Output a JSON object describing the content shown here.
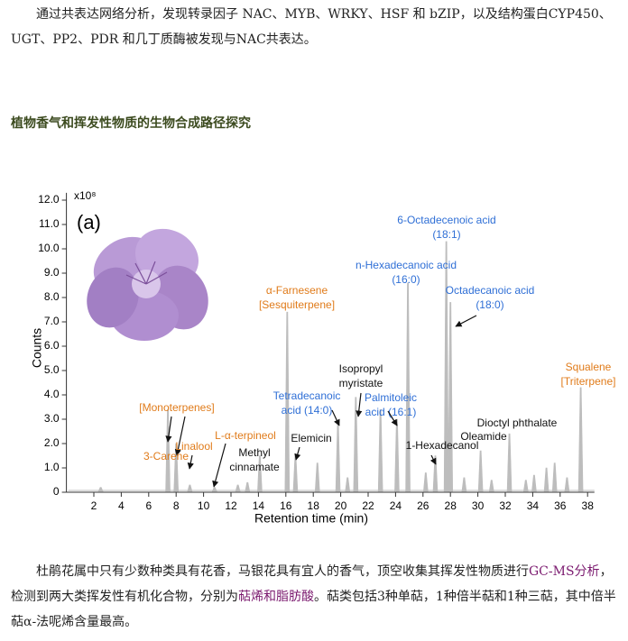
{
  "intro": "通过共表达网络分析，发现转录因子 NAC、MYB、WRKY、HSF 和 bZIP，以及结构蛋白CYP450、UGT、PP2、PDR 和几丁质酶被发现与NAC共表达。",
  "heading": "植物香气和挥发性物质的生物合成路径探究",
  "chart_data": {
    "type": "spike",
    "panel_label": "(a)",
    "y_multiplier": "x10⁸",
    "x_label": "Retention time (min)",
    "y_label": "Counts",
    "color": "#bdbdbd",
    "xlim": [
      0,
      38.5
    ],
    "ylim": [
      0,
      12.3
    ],
    "xticks": [
      2,
      4,
      6,
      8,
      10,
      12,
      14,
      16,
      18,
      20,
      22,
      24,
      26,
      28,
      30,
      32,
      34,
      36,
      38
    ],
    "yticks": [
      0,
      {
        "value": 1,
        "label": "1.0"
      },
      {
        "value": 2,
        "label": "2.0"
      },
      {
        "value": 3,
        "label": "3.0"
      },
      {
        "value": 4,
        "label": "4.0"
      },
      {
        "value": 5,
        "label": "5.0"
      },
      {
        "value": 6,
        "label": "6.0"
      },
      {
        "value": 7,
        "label": "7.0"
      },
      {
        "value": 8,
        "label": "8.0"
      },
      {
        "value": 9,
        "label": "9.0"
      },
      {
        "value": 10,
        "label": "10.0"
      },
      {
        "value": 11,
        "label": "11.0"
      },
      {
        "value": 12,
        "label": "12.0"
      }
    ],
    "x": [
      2.5,
      7.4,
      8.0,
      9.0,
      10.8,
      12.5,
      13.2,
      14.1,
      16.1,
      16.7,
      18.3,
      19.8,
      20.5,
      21.1,
      22.9,
      24.1,
      24.9,
      26.2,
      26.9,
      27.7,
      28.0,
      29.0,
      30.2,
      31.0,
      32.3,
      33.5,
      34.1,
      35.0,
      35.6,
      36.5,
      37.5
    ],
    "values": [
      0.2,
      3.4,
      2.0,
      0.3,
      0.2,
      0.3,
      0.4,
      1.5,
      7.4,
      1.5,
      1.2,
      2.8,
      0.6,
      3.9,
      3.4,
      3.0,
      8.6,
      0.8,
      1.5,
      10.3,
      7.8,
      0.6,
      1.7,
      0.5,
      2.4,
      0.5,
      0.7,
      1.0,
      1.2,
      0.6,
      4.3
    ],
    "annotations": [
      {
        "lines": [
          "6-Octadecenoic acid",
          "(18:1)"
        ],
        "color": "#2f6fd6"
      },
      {
        "lines": [
          "n-Hexadecanoic acid",
          "(16:0)"
        ],
        "color": "#2f6fd6"
      },
      {
        "lines": [
          "Octadecanoic acid",
          "(18:0)"
        ],
        "color": "#2f6fd6"
      },
      {
        "lines": [
          "α-Farnesene",
          "[Sesquiterpene]"
        ],
        "color": "#e07b1a"
      },
      {
        "lines": [
          "Squalene",
          "[Triterpene]"
        ],
        "color": "#e07b1a"
      },
      {
        "lines": [
          "Isopropyl",
          "myristate"
        ],
        "color": "#111111"
      },
      {
        "lines": [
          "Tetradecanoic",
          "acid (14:0)"
        ],
        "color": "#2f6fd6"
      },
      {
        "lines": [
          "Palmitoleic",
          "acid (16:1)"
        ],
        "color": "#2f6fd6"
      },
      {
        "lines": [
          "[Monoterpenes]"
        ],
        "color": "#e07b1a"
      },
      {
        "lines": [
          "L-α-terpineol"
        ],
        "color": "#e07b1a"
      },
      {
        "lines": [
          "Linalool"
        ],
        "color": "#e07b1a"
      },
      {
        "lines": [
          "3-Carene"
        ],
        "color": "#e07b1a"
      },
      {
        "lines": [
          "Methyl",
          "cinnamate"
        ],
        "color": "#111111"
      },
      {
        "lines": [
          "Elemicin"
        ],
        "color": "#111111"
      },
      {
        "lines": [
          "Dioctyl phthalate"
        ],
        "color": "#111111"
      },
      {
        "lines": [
          "Oleamide"
        ],
        "color": "#111111"
      },
      {
        "lines": [
          "1-Hexadecanol"
        ],
        "color": "#111111"
      }
    ]
  },
  "body": [
    "杜鹃花属中只有少数种类具有花香，马银花具有宜人的香气，顶空收集其挥发性物质进行",
    "GC-MS分析",
    "，检测到两大类挥发性有机化合物，分别为",
    "萜烯和脂肪酸",
    "。萜类包括3种单萜，1种倍半萜和1种三萜，其中倍半萜α-法呢烯含量最高。"
  ]
}
